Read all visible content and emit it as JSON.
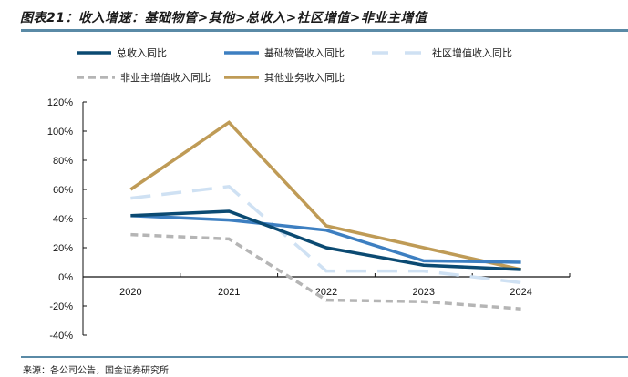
{
  "title": "图表21：收入增速：基础物管>其他>总收入>社区增值>非业主增值",
  "source": "来源：各公司公告，国金证券研究所",
  "chart_data": {
    "type": "line",
    "title": "图表21：收入增速：基础物管>其他>总收入>社区增值>非业主增值",
    "xlabel": "",
    "ylabel": "",
    "categories": [
      "2020",
      "2021",
      "2022",
      "2023",
      "2024"
    ],
    "ylim": [
      -0.4,
      1.2
    ],
    "yticks": [
      1.2,
      1.0,
      0.8,
      0.6,
      0.4,
      0.2,
      0.0,
      -0.2,
      -0.4
    ],
    "ytick_labels": [
      "120%",
      "100%",
      "80%",
      "60%",
      "40%",
      "20%",
      "0%",
      "-20%",
      "-40%"
    ],
    "grid": false,
    "legend_position": "top",
    "series": [
      {
        "name": "总收入同比",
        "color": "#0b4a72",
        "style": "solid",
        "values": [
          0.42,
          0.45,
          0.2,
          0.08,
          0.05
        ]
      },
      {
        "name": "基础物管收入同比",
        "color": "#3d7fc1",
        "style": "solid",
        "values": [
          0.42,
          0.39,
          0.32,
          0.11,
          0.1
        ]
      },
      {
        "name": "社区增值收入同比",
        "color": "#cfe1f3",
        "style": "longdash",
        "values": [
          0.54,
          0.62,
          0.04,
          0.04,
          -0.04
        ]
      },
      {
        "name": "非业主增值收入同比",
        "color": "#b5b5b5",
        "style": "dash",
        "values": [
          0.29,
          0.26,
          -0.16,
          -0.17,
          -0.22
        ]
      },
      {
        "name": "其他业务收入同比",
        "color": "#bf9b56",
        "style": "solid",
        "values": [
          0.6,
          1.06,
          0.35,
          0.2,
          0.05
        ]
      }
    ]
  }
}
